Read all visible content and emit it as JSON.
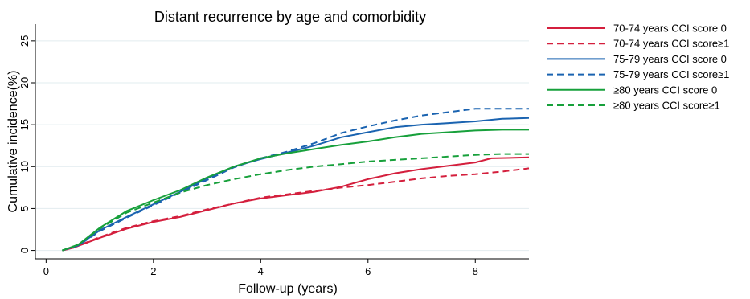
{
  "chart_data": {
    "type": "line",
    "title": "Distant recurrence by age and comorbidity",
    "xlabel": "Follow-up (years)",
    "ylabel": "Cumulative incidence(%)",
    "xlim": [
      -0.2,
      9.0
    ],
    "ylim": [
      -1.0,
      27.0
    ],
    "xticks": [
      0,
      2,
      4,
      6,
      8
    ],
    "yticks": [
      0,
      5,
      10,
      15,
      20,
      25
    ],
    "grid": "horizontal",
    "legend_position": "right",
    "series": [
      {
        "name": "70-74 years CCI score 0",
        "color": "#d41f3d",
        "dash": "solid",
        "points": [
          [
            0.3,
            0
          ],
          [
            0.5,
            0.3
          ],
          [
            1.0,
            1.5
          ],
          [
            1.5,
            2.6
          ],
          [
            2.0,
            3.4
          ],
          [
            2.5,
            4.0
          ],
          [
            3.0,
            4.8
          ],
          [
            3.5,
            5.6
          ],
          [
            4.0,
            6.2
          ],
          [
            4.5,
            6.6
          ],
          [
            5.0,
            7.0
          ],
          [
            5.5,
            7.6
          ],
          [
            6.0,
            8.5
          ],
          [
            6.5,
            9.2
          ],
          [
            7.0,
            9.7
          ],
          [
            7.5,
            10.1
          ],
          [
            8.0,
            10.5
          ],
          [
            8.3,
            11.0
          ],
          [
            9.0,
            11.1
          ]
        ]
      },
      {
        "name": "70-74 years CCI score≥1",
        "color": "#d41f3d",
        "dash": "dashed",
        "points": [
          [
            0.3,
            0
          ],
          [
            0.5,
            0.3
          ],
          [
            1.0,
            1.6
          ],
          [
            1.5,
            2.7
          ],
          [
            2.0,
            3.5
          ],
          [
            2.5,
            4.1
          ],
          [
            3.0,
            4.9
          ],
          [
            3.5,
            5.6
          ],
          [
            4.0,
            6.3
          ],
          [
            4.5,
            6.7
          ],
          [
            5.0,
            7.1
          ],
          [
            5.5,
            7.5
          ],
          [
            6.0,
            7.8
          ],
          [
            6.5,
            8.2
          ],
          [
            7.0,
            8.6
          ],
          [
            7.5,
            8.9
          ],
          [
            8.0,
            9.1
          ],
          [
            8.5,
            9.4
          ],
          [
            9.0,
            9.8
          ]
        ]
      },
      {
        "name": "75-79 years CCI score 0",
        "color": "#1a63b0",
        "dash": "solid",
        "points": [
          [
            0.3,
            0
          ],
          [
            0.6,
            0.6
          ],
          [
            1.0,
            2.4
          ],
          [
            1.5,
            4.0
          ],
          [
            2.0,
            5.5
          ],
          [
            2.5,
            7.0
          ],
          [
            3.0,
            8.6
          ],
          [
            3.5,
            10.0
          ],
          [
            4.0,
            10.9
          ],
          [
            4.5,
            11.7
          ],
          [
            5.0,
            12.5
          ],
          [
            5.5,
            13.5
          ],
          [
            6.0,
            14.1
          ],
          [
            6.5,
            14.7
          ],
          [
            7.0,
            15.0
          ],
          [
            7.5,
            15.2
          ],
          [
            8.0,
            15.4
          ],
          [
            8.5,
            15.7
          ],
          [
            9.0,
            15.8
          ]
        ]
      },
      {
        "name": "75-79 years CCI score≥1",
        "color": "#1a63b0",
        "dash": "dashed",
        "points": [
          [
            0.3,
            0
          ],
          [
            0.6,
            0.6
          ],
          [
            1.0,
            2.3
          ],
          [
            1.5,
            3.9
          ],
          [
            2.0,
            5.4
          ],
          [
            2.5,
            6.9
          ],
          [
            3.0,
            8.4
          ],
          [
            3.5,
            9.9
          ],
          [
            4.0,
            11.0
          ],
          [
            4.5,
            11.8
          ],
          [
            5.0,
            12.8
          ],
          [
            5.5,
            14.0
          ],
          [
            6.0,
            14.8
          ],
          [
            6.5,
            15.5
          ],
          [
            7.0,
            16.1
          ],
          [
            7.5,
            16.5
          ],
          [
            8.0,
            16.9
          ],
          [
            9.0,
            16.9
          ]
        ]
      },
      {
        "name": "≥80 years CCI score 0",
        "color": "#17a03b",
        "dash": "solid",
        "points": [
          [
            0.3,
            0
          ],
          [
            0.6,
            0.7
          ],
          [
            1.0,
            2.7
          ],
          [
            1.5,
            4.7
          ],
          [
            2.0,
            6.0
          ],
          [
            2.5,
            7.2
          ],
          [
            3.0,
            8.7
          ],
          [
            3.5,
            10.0
          ],
          [
            4.0,
            11.0
          ],
          [
            4.5,
            11.6
          ],
          [
            5.0,
            12.1
          ],
          [
            5.5,
            12.6
          ],
          [
            6.0,
            13.0
          ],
          [
            6.5,
            13.5
          ],
          [
            7.0,
            13.9
          ],
          [
            7.5,
            14.1
          ],
          [
            8.0,
            14.3
          ],
          [
            8.5,
            14.4
          ],
          [
            9.0,
            14.4
          ]
        ]
      },
      {
        "name": "≥80 years CCI score≥1",
        "color": "#17a03b",
        "dash": "dashed",
        "points": [
          [
            0.3,
            0
          ],
          [
            0.6,
            0.7
          ],
          [
            1.0,
            2.6
          ],
          [
            1.5,
            4.5
          ],
          [
            2.0,
            5.7
          ],
          [
            2.5,
            6.9
          ],
          [
            3.0,
            7.8
          ],
          [
            3.5,
            8.5
          ],
          [
            4.0,
            9.1
          ],
          [
            4.5,
            9.6
          ],
          [
            5.0,
            10.0
          ],
          [
            5.5,
            10.3
          ],
          [
            6.0,
            10.6
          ],
          [
            6.5,
            10.8
          ],
          [
            7.0,
            11.0
          ],
          [
            7.5,
            11.2
          ],
          [
            8.0,
            11.4
          ],
          [
            8.5,
            11.5
          ],
          [
            9.0,
            11.5
          ]
        ]
      }
    ]
  }
}
